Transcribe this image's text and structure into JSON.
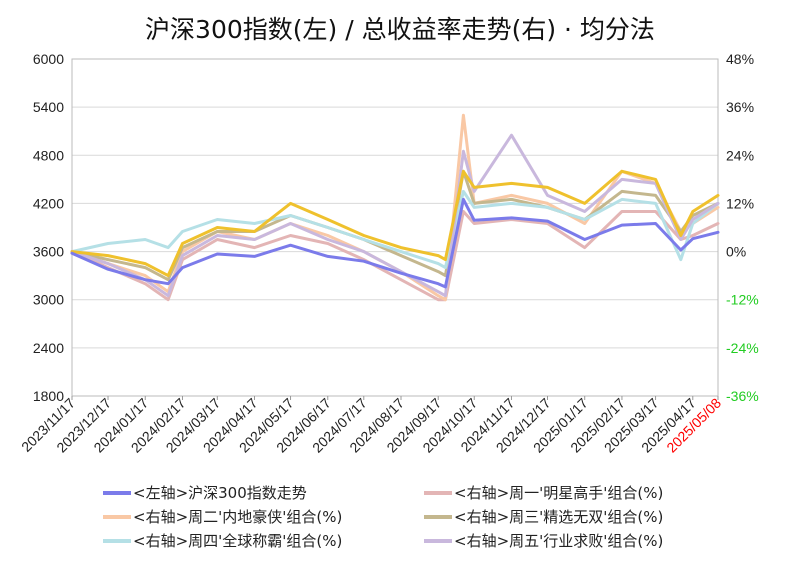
{
  "chart_data": {
    "type": "line",
    "title": "沪深300指数(左)  /  总收益率走势(右) · 均分法",
    "y_left": {
      "ylim": [
        1800,
        6000
      ],
      "ticks": [
        "6000",
        "5400",
        "4800",
        "4200",
        "3600",
        "3000",
        "2400",
        "1800"
      ]
    },
    "y_right": {
      "ylim": [
        -0.36,
        0.48
      ],
      "ticks": [
        "48%",
        "36%",
        "24%",
        "12%",
        "0%",
        "-12%",
        "-24%",
        "-36%"
      ],
      "negative_tick_color": "#22cc22"
    },
    "x_ticks": [
      "2023/11/17",
      "2023/12/17",
      "2024/01/17",
      "2024/02/17",
      "2024/03/17",
      "2024/04/17",
      "2024/05/17",
      "2024/06/17",
      "2024/07/17",
      "2024/08/17",
      "2024/09/17",
      "2024/10/17",
      "2024/11/17",
      "2024/12/17",
      "2025/01/17",
      "2025/02/17",
      "2025/03/17",
      "2025/04/17",
      "2025/05/08"
    ],
    "x_last_tick_color": "#ff0000",
    "grid": true,
    "legend_position": "bottom",
    "series": [
      {
        "name": "<左轴>沪深300指数走势",
        "axis": "left",
        "color": "#7b7bea",
        "x": [
          "2023/11/17",
          "2023/12/17",
          "2024/01/17",
          "2024/02/05",
          "2024/02/17",
          "2024/03/17",
          "2024/04/17",
          "2024/05/17",
          "2024/06/17",
          "2024/07/17",
          "2024/08/17",
          "2024/09/17",
          "2024/09/23",
          "2024/10/08",
          "2024/10/17",
          "2024/11/17",
          "2024/12/17",
          "2025/01/17",
          "2025/02/17",
          "2025/03/17",
          "2025/04/07",
          "2025/04/17",
          "2025/05/08"
        ],
        "values": [
          3580,
          3380,
          3250,
          3200,
          3400,
          3570,
          3540,
          3680,
          3540,
          3480,
          3330,
          3200,
          3160,
          4250,
          3990,
          4020,
          3980,
          3750,
          3930,
          3950,
          3620,
          3760,
          3840
        ]
      },
      {
        "name": "<右轴>周一'明星高手'组合(%)",
        "axis": "right",
        "color": "#e3b5b5",
        "x": [
          "2023/11/17",
          "2023/12/17",
          "2024/01/17",
          "2024/02/05",
          "2024/02/17",
          "2024/03/17",
          "2024/04/17",
          "2024/05/17",
          "2024/06/17",
          "2024/07/17",
          "2024/08/17",
          "2024/09/17",
          "2024/09/23",
          "2024/10/08",
          "2024/10/17",
          "2024/11/17",
          "2024/12/17",
          "2025/01/17",
          "2025/02/17",
          "2025/03/17",
          "2025/04/07",
          "2025/04/17",
          "2025/05/08"
        ],
        "values": [
          0.0,
          -0.04,
          -0.08,
          -0.12,
          -0.02,
          0.03,
          0.01,
          0.04,
          0.02,
          -0.02,
          -0.07,
          -0.12,
          -0.12,
          0.1,
          0.07,
          0.08,
          0.07,
          0.01,
          0.1,
          0.1,
          0.03,
          0.04,
          0.07
        ]
      },
      {
        "name": "<右轴>周二'内地豪侠'组合(%)",
        "axis": "right",
        "color": "#f9c8a5",
        "x": [
          "2023/11/17",
          "2023/12/17",
          "2024/01/17",
          "2024/02/05",
          "2024/02/17",
          "2024/03/17",
          "2024/04/17",
          "2024/05/17",
          "2024/06/17",
          "2024/07/17",
          "2024/08/17",
          "2024/09/17",
          "2024/09/23",
          "2024/10/08",
          "2024/10/17",
          "2024/11/17",
          "2024/12/17",
          "2025/01/17",
          "2025/02/17",
          "2025/03/17",
          "2025/04/07",
          "2025/04/17",
          "2025/05/08"
        ],
        "values": [
          0.0,
          -0.03,
          -0.06,
          -0.1,
          0.0,
          0.05,
          0.03,
          0.07,
          0.04,
          0.0,
          -0.05,
          -0.11,
          -0.12,
          0.34,
          0.12,
          0.14,
          0.12,
          0.07,
          0.2,
          0.17,
          0.05,
          0.07,
          0.11
        ]
      },
      {
        "name": "<右轴>周三'精选无双'组合(%)",
        "axis": "right",
        "color": "#c4b78e",
        "x": [
          "2023/11/17",
          "2023/12/17",
          "2024/01/17",
          "2024/02/05",
          "2024/02/17",
          "2024/03/17",
          "2024/04/17",
          "2024/05/17",
          "2024/06/17",
          "2024/07/17",
          "2024/08/17",
          "2024/09/17",
          "2024/09/23",
          "2024/10/08",
          "2024/10/17",
          "2024/11/17",
          "2024/12/17",
          "2025/01/17",
          "2025/02/17",
          "2025/03/17",
          "2025/04/07",
          "2025/04/17",
          "2025/05/08"
        ],
        "values": [
          0.0,
          -0.02,
          -0.04,
          -0.07,
          0.01,
          0.05,
          0.05,
          0.09,
          0.06,
          0.03,
          -0.01,
          -0.05,
          -0.06,
          0.2,
          0.12,
          0.13,
          0.11,
          0.08,
          0.15,
          0.14,
          0.05,
          0.09,
          0.12
        ]
      },
      {
        "name": "<右轴>周四'全球称霸'组合(%)",
        "axis": "right",
        "color": "#b5e0e6",
        "x": [
          "2023/11/17",
          "2023/12/17",
          "2024/01/17",
          "2024/02/05",
          "2024/02/17",
          "2024/03/17",
          "2024/04/17",
          "2024/05/17",
          "2024/06/17",
          "2024/07/17",
          "2024/08/17",
          "2024/09/17",
          "2024/09/23",
          "2024/10/08",
          "2024/10/17",
          "2024/11/17",
          "2024/12/17",
          "2025/01/17",
          "2025/02/17",
          "2025/03/17",
          "2025/04/07",
          "2025/04/17",
          "2025/05/08"
        ],
        "values": [
          0.0,
          0.02,
          0.03,
          0.01,
          0.05,
          0.08,
          0.07,
          0.09,
          0.06,
          0.03,
          0.0,
          -0.03,
          -0.04,
          0.15,
          0.11,
          0.12,
          0.11,
          0.08,
          0.13,
          0.12,
          -0.02,
          0.07,
          0.12
        ]
      },
      {
        "name": "<右轴>周五'行业求败'组合(%)",
        "axis": "right",
        "color": "#c9b8dd",
        "x": [
          "2023/11/17",
          "2023/12/17",
          "2024/01/17",
          "2024/02/05",
          "2024/02/17",
          "2024/03/17",
          "2024/04/17",
          "2024/05/17",
          "2024/06/17",
          "2024/07/17",
          "2024/08/17",
          "2024/09/17",
          "2024/09/23",
          "2024/10/08",
          "2024/10/17",
          "2024/11/17",
          "2024/12/17",
          "2025/01/17",
          "2025/02/17",
          "2025/03/17",
          "2025/04/07",
          "2025/04/17",
          "2025/05/08"
        ],
        "values": [
          0.0,
          -0.03,
          -0.07,
          -0.11,
          -0.01,
          0.04,
          0.03,
          0.07,
          0.03,
          0.0,
          -0.05,
          -0.1,
          -0.11,
          0.25,
          0.15,
          0.29,
          0.14,
          0.1,
          0.18,
          0.17,
          0.03,
          0.08,
          0.12
        ]
      },
      {
        "name": "",
        "axis": "right",
        "color": "#efc12d",
        "x": [
          "2023/11/17",
          "2023/12/17",
          "2024/01/17",
          "2024/02/05",
          "2024/02/17",
          "2024/03/17",
          "2024/04/17",
          "2024/05/17",
          "2024/06/17",
          "2024/07/17",
          "2024/08/17",
          "2024/09/17",
          "2024/09/23",
          "2024/10/08",
          "2024/10/17",
          "2024/11/17",
          "2024/12/17",
          "2025/01/17",
          "2025/02/17",
          "2025/03/17",
          "2025/04/07",
          "2025/04/17",
          "2025/05/08"
        ],
        "values": [
          0.0,
          -0.01,
          -0.03,
          -0.06,
          0.02,
          0.06,
          0.05,
          0.12,
          0.08,
          0.04,
          0.01,
          -0.01,
          -0.02,
          0.2,
          0.16,
          0.17,
          0.16,
          0.12,
          0.2,
          0.18,
          0.04,
          0.1,
          0.14
        ]
      }
    ]
  }
}
